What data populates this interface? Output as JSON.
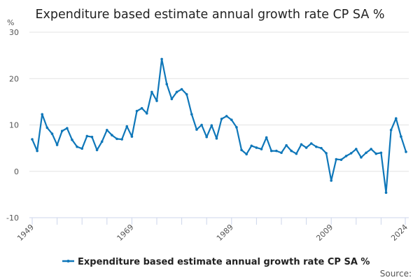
{
  "chart_data": {
    "type": "line",
    "title": "Expenditure based estimate annual growth rate CP SA %",
    "ylabel": "%",
    "xlabel": "",
    "ylim": [
      -10,
      30
    ],
    "yticks": [
      -10,
      0,
      10,
      20,
      30
    ],
    "xlim": [
      1949,
      2024
    ],
    "xticks": [
      1949,
      1969,
      1989,
      2009,
      2024
    ],
    "grid": true,
    "legend_position": "bottom",
    "color": "#0f77b9",
    "x": [
      1949,
      1950,
      1951,
      1952,
      1953,
      1954,
      1955,
      1956,
      1957,
      1958,
      1959,
      1960,
      1961,
      1962,
      1963,
      1964,
      1965,
      1966,
      1967,
      1968,
      1969,
      1970,
      1971,
      1972,
      1973,
      1974,
      1975,
      1976,
      1977,
      1978,
      1979,
      1980,
      1981,
      1982,
      1983,
      1984,
      1985,
      1986,
      1987,
      1988,
      1989,
      1990,
      1991,
      1992,
      1993,
      1994,
      1995,
      1996,
      1997,
      1998,
      1999,
      2000,
      2001,
      2002,
      2003,
      2004,
      2005,
      2006,
      2007,
      2008,
      2009,
      2010,
      2011,
      2012,
      2013,
      2014,
      2015,
      2016,
      2017,
      2018,
      2019,
      2020,
      2021,
      2022,
      2023,
      2024
    ],
    "series": [
      {
        "name": "Expenditure based estimate annual growth rate CP SA %",
        "values": [
          6.9,
          4.4,
          12.3,
          9.4,
          8.1,
          5.7,
          8.7,
          9.3,
          6.8,
          5.3,
          4.9,
          7.6,
          7.4,
          4.6,
          6.4,
          8.9,
          7.8,
          7.0,
          6.9,
          9.7,
          7.5,
          13.0,
          13.6,
          12.5,
          17.1,
          15.2,
          24.2,
          18.8,
          15.6,
          17.1,
          17.7,
          16.6,
          12.3,
          9.0,
          10.0,
          7.4,
          9.9,
          7.1,
          11.3,
          11.9,
          11.1,
          9.5,
          4.6,
          3.7,
          5.5,
          5.1,
          4.8,
          7.3,
          4.4,
          4.4,
          4.0,
          5.6,
          4.4,
          3.8,
          5.8,
          5.1,
          6.0,
          5.3,
          5.0,
          3.9,
          -2.0,
          2.6,
          2.5,
          3.3,
          3.9,
          4.8,
          3.0,
          4.0,
          4.8,
          3.8,
          4.0,
          -4.6,
          8.9,
          11.4,
          7.5,
          4.2
        ]
      }
    ]
  },
  "legend": {
    "label": "Expenditure based estimate annual growth rate CP SA %"
  },
  "footer": {
    "source": "Source:"
  }
}
